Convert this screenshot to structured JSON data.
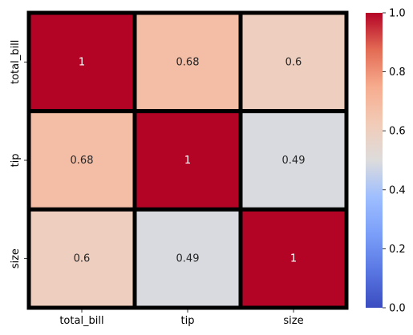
{
  "chart_data": {
    "type": "heatmap",
    "title": "",
    "xlabel": "",
    "ylabel": "",
    "x_labels": [
      "total_bill",
      "tip",
      "size"
    ],
    "y_labels": [
      "total_bill",
      "tip",
      "size"
    ],
    "values": [
      [
        1,
        0.68,
        0.6
      ],
      [
        0.68,
        1,
        0.49
      ],
      [
        0.6,
        0.49,
        1
      ]
    ],
    "cell_labels": [
      [
        "1",
        "0.68",
        "0.6"
      ],
      [
        "0.68",
        "1",
        "0.49"
      ],
      [
        "0.6",
        "0.49",
        "1"
      ]
    ],
    "colormap": "coolwarm",
    "vmin": 0.0,
    "vmax": 1.0,
    "colorbar_ticks": [
      "0.0",
      "0.2",
      "0.4",
      "0.6",
      "0.8",
      "1.0"
    ],
    "cell_border_color": "#000000",
    "annotation_text_color_dark": "#262626",
    "annotation_text_color_light": "#ffffff",
    "grid": false,
    "legend": "colorbar-right"
  }
}
